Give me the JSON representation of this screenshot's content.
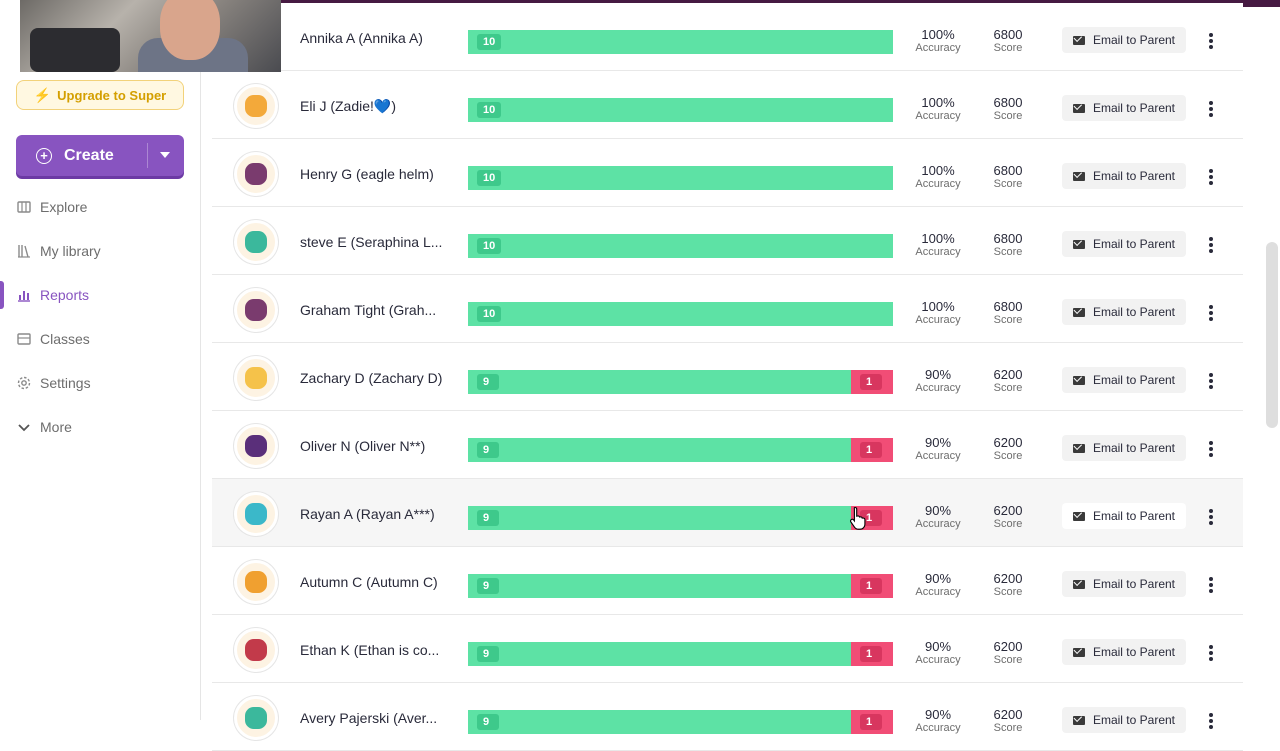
{
  "sidebar": {
    "upgrade_label": "Upgrade to Super",
    "create_label": "Create",
    "nav": [
      {
        "label": "Explore",
        "icon": "explore-icon"
      },
      {
        "label": "My library",
        "icon": "library-icon"
      },
      {
        "label": "Reports",
        "icon": "reports-icon",
        "active": true
      },
      {
        "label": "Classes",
        "icon": "classes-icon"
      },
      {
        "label": "Settings",
        "icon": "settings-icon"
      },
      {
        "label": "More",
        "icon": "chevron-down-icon"
      }
    ]
  },
  "colors": {
    "brand": "#8854c0",
    "correct": "#5de2a5",
    "incorrect": "#f14d76",
    "header_strip": "#461a42"
  },
  "table": {
    "accuracy_label": "Accuracy",
    "score_label": "Score",
    "email_label": "Email to Parent",
    "rows": [
      {
        "name": "Annika A (Annika A)",
        "correct": 10,
        "incorrect": 0,
        "accuracy": "100%",
        "score": "6800",
        "avatar": "#f6b98a"
      },
      {
        "name": "Eli J (Zadie!💙)",
        "correct": 10,
        "incorrect": 0,
        "accuracy": "100%",
        "score": "6800",
        "avatar": "#f3a93a"
      },
      {
        "name": "Henry G (eagle helm)",
        "correct": 10,
        "incorrect": 0,
        "accuracy": "100%",
        "score": "6800",
        "avatar": "#7a3b6e"
      },
      {
        "name": "steve E (Seraphina L...",
        "correct": 10,
        "incorrect": 0,
        "accuracy": "100%",
        "score": "6800",
        "avatar": "#3bb89c"
      },
      {
        "name": "Graham Tight (Grah...",
        "correct": 10,
        "incorrect": 0,
        "accuracy": "100%",
        "score": "6800",
        "avatar": "#7a3b6e"
      },
      {
        "name": "Zachary D (Zachary D)",
        "correct": 9,
        "incorrect": 1,
        "accuracy": "90%",
        "score": "6200",
        "avatar": "#f5c24a"
      },
      {
        "name": "Oliver N (Oliver N**)",
        "correct": 9,
        "incorrect": 1,
        "accuracy": "90%",
        "score": "6200",
        "avatar": "#5a2f7a"
      },
      {
        "name": "Rayan A (Rayan A***)",
        "correct": 9,
        "incorrect": 1,
        "accuracy": "90%",
        "score": "6200",
        "avatar": "#3bb8c9"
      },
      {
        "name": "Autumn C (Autumn C)",
        "correct": 9,
        "incorrect": 1,
        "accuracy": "90%",
        "score": "6200",
        "avatar": "#f0a030"
      },
      {
        "name": "Ethan K (Ethan is co...",
        "correct": 9,
        "incorrect": 1,
        "accuracy": "90%",
        "score": "6200",
        "avatar": "#c23a4a"
      },
      {
        "name": "Avery Pajerski (Aver...",
        "correct": 9,
        "incorrect": 1,
        "accuracy": "90%",
        "score": "6200",
        "avatar": "#3bb89c"
      }
    ]
  }
}
